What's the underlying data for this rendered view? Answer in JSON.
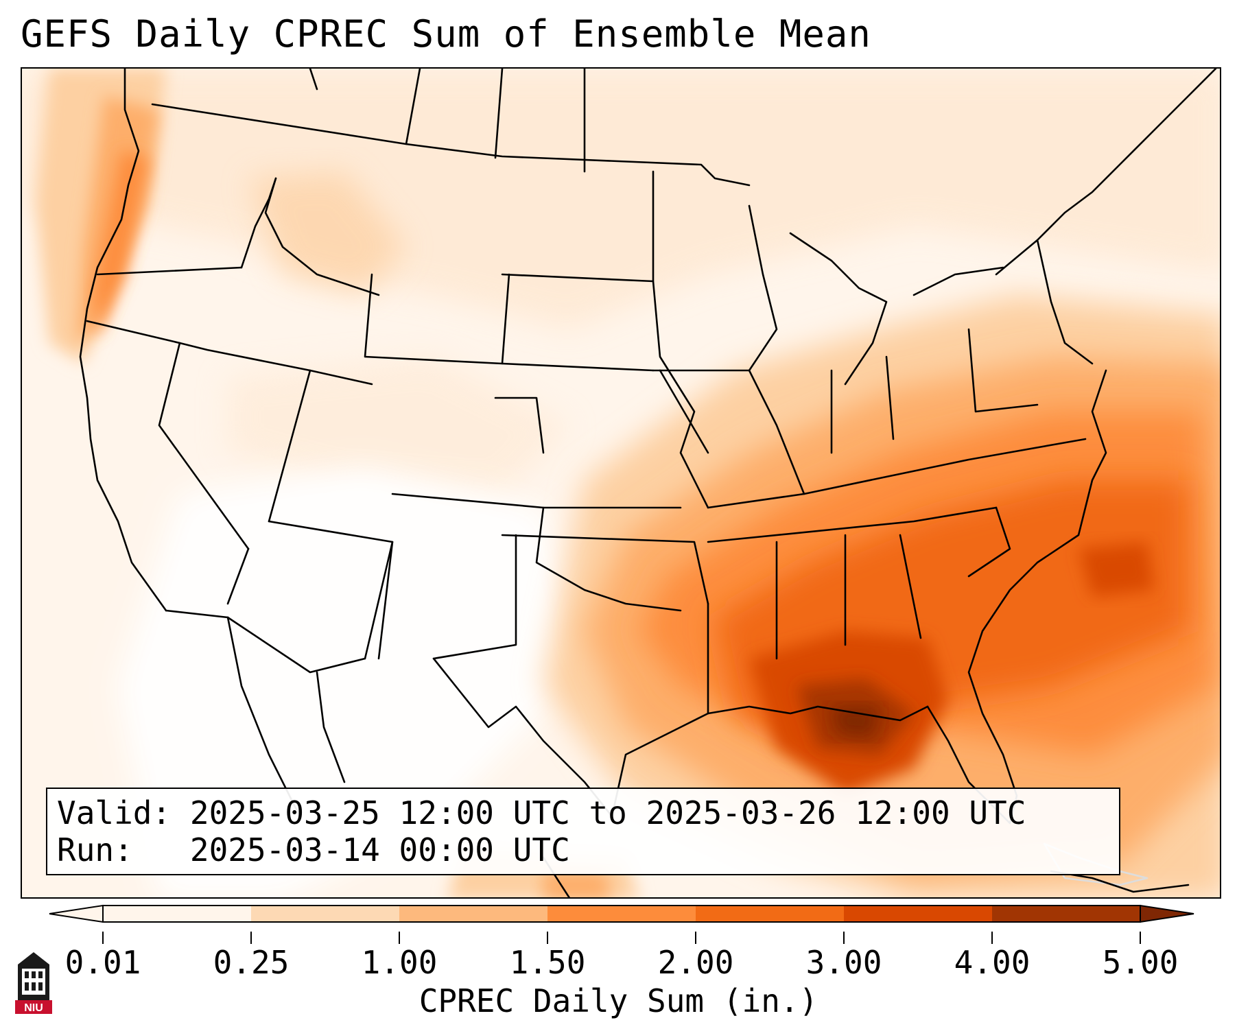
{
  "header": {
    "title": "GEFS Daily CPREC Sum of Ensemble Mean"
  },
  "map": {
    "region": "Continental United States",
    "variable": "CPREC daily sum",
    "heaviest_area": "Gulf Coast / Southeast (Louisiana, Mississippi, Alabama, Florida Panhandle)",
    "secondary_maxima": [
      "Pacific Northwest coast",
      "Mid-Atlantic & Western Atlantic",
      "Ohio / Tennessee Valley"
    ],
    "driest_area": "Desert Southwest / northern Mexico"
  },
  "infobox": {
    "valid_label": "Valid:",
    "valid_value": "2025-03-25 12:00 UTC to 2025-03-26 12:00 UTC",
    "run_label": "Run:",
    "run_value": "2025-03-14 00:00 UTC"
  },
  "colorbar": {
    "title": "CPREC Daily Sum (in.)",
    "ticks": [
      "0.01",
      "0.25",
      "1.00",
      "1.50",
      "2.00",
      "3.00",
      "4.00",
      "5.00"
    ],
    "colors": [
      "#fff5eb",
      "#fdd9b4",
      "#fdb97d",
      "#fd8c3b",
      "#f26b15",
      "#d94801",
      "#a13503",
      "#7f2704"
    ],
    "extend": "both"
  },
  "logo": {
    "text": "NIU",
    "icon": "university-building-icon",
    "accent": "#c8102e"
  }
}
